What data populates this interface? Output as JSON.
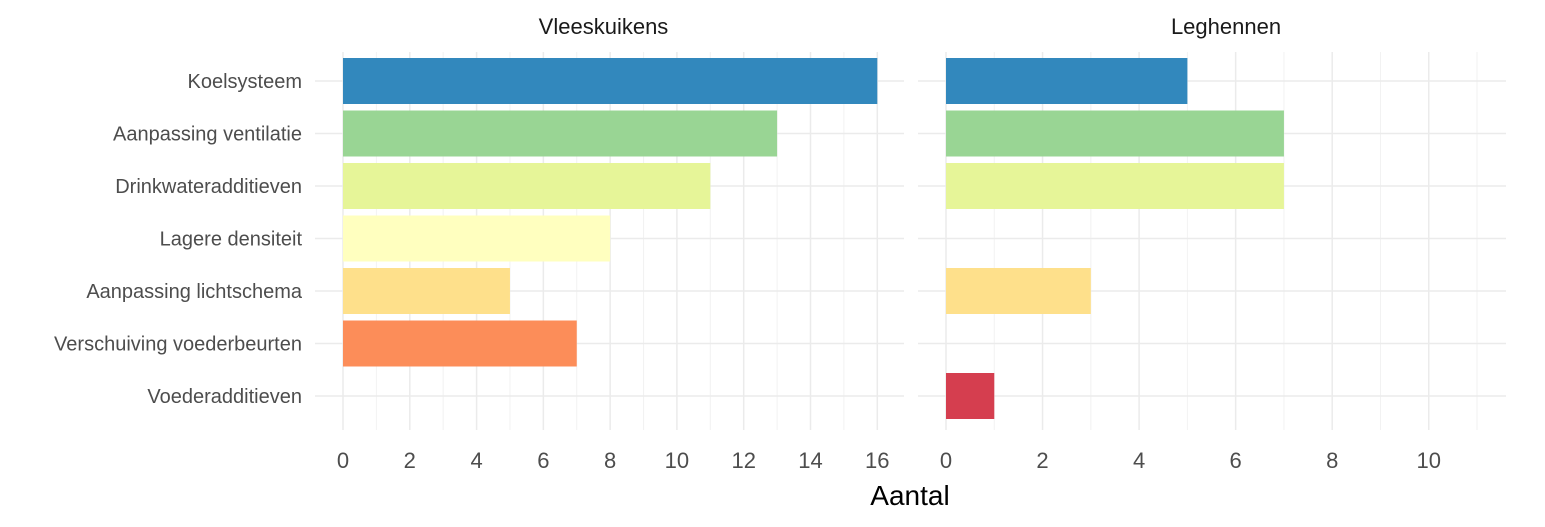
{
  "chart_data": {
    "type": "bar",
    "orientation": "horizontal",
    "xlabel": "Aantal",
    "ylabel": "",
    "categories": [
      "Koelsysteem",
      "Aanpassing ventilatie",
      "Drinkwateradditieven",
      "Lagere densiteit",
      "Aanpassing lichtschema",
      "Verschuiving voederbeurten",
      "Voederadditieven"
    ],
    "colors": [
      "#3288bd",
      "#99d594",
      "#e6f598",
      "#ffffbf",
      "#fee08b",
      "#fc8d59",
      "#d53e4f"
    ],
    "grid": true,
    "legend": "none",
    "facets": [
      {
        "title": "Vleeskuikens",
        "values": [
          16,
          13,
          11,
          8,
          5,
          7,
          0
        ],
        "xlim": [
          0,
          16.8
        ],
        "ticks": [
          0,
          2,
          4,
          6,
          8,
          10,
          12,
          14,
          16
        ],
        "tick_labels": [
          "0",
          "2",
          "4",
          "6",
          "8",
          "10",
          "12",
          "14",
          "16"
        ]
      },
      {
        "title": "Leghennen",
        "values": [
          5,
          7,
          7,
          0,
          3,
          0,
          1
        ],
        "xlim": [
          0,
          11.6
        ],
        "ticks": [
          0,
          2,
          4,
          6,
          8,
          10
        ],
        "tick_labels": [
          "0",
          "2",
          "4",
          "6",
          "8",
          "10"
        ]
      }
    ]
  }
}
